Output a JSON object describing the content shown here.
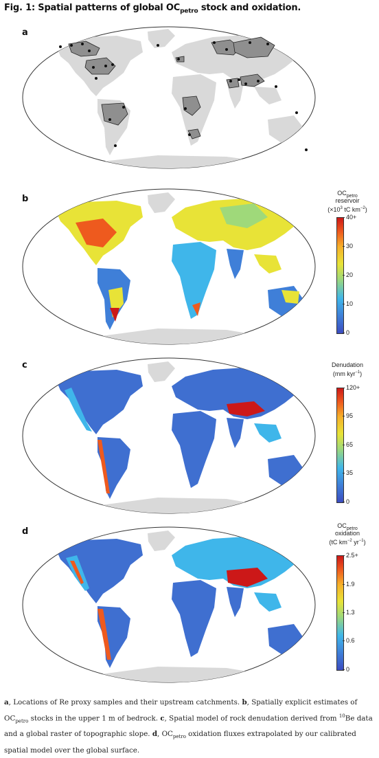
{
  "figure": {
    "title_prefix": "Fig. 1: Spatial patterns of global OC",
    "title_sub": "petro",
    "title_suffix": " stock and oxidation."
  },
  "panels": [
    {
      "letter": "a"
    },
    {
      "letter": "b",
      "colorbar": {
        "title_main": "OC",
        "title_sub": "petro",
        "line2": "reservoir",
        "line3_pre": "(×10",
        "line3_sup": "3",
        "line3_post": " tC km",
        "line3_sup2": "−2",
        "line3_end": ")",
        "ticks": [
          "40+",
          "30",
          "20",
          "10",
          "0"
        ]
      }
    },
    {
      "letter": "c",
      "colorbar": {
        "title_main": "Denudation",
        "line2_pre": "(mm kyr",
        "line2_sup": "−1",
        "line2_end": ")",
        "ticks": [
          "120+",
          "95",
          "65",
          "35",
          "0"
        ]
      }
    },
    {
      "letter": "d",
      "colorbar": {
        "title_main": "OC",
        "title_sub": "petro",
        "line2": "oxidation",
        "line3_pre": "(tC km",
        "line3_sup": "−2",
        "line3_mid": " yr",
        "line3_sup2": "−1",
        "line3_end": ")",
        "ticks": [
          "2.5+",
          "1.9",
          "1.3",
          "0.6",
          "0"
        ]
      }
    }
  ],
  "caption": {
    "a_letter": "a",
    "a_text": ", Locations of Re proxy samples and their upstream catchments. ",
    "b_letter": "b",
    "b_text1": ", Spatially explicit estimates of OC",
    "b_sub": "petro",
    "b_text2": " stocks in the upper 1 m of bedrock. ",
    "c_letter": "c",
    "c_text1": ", Spatial model of rock denudation derived from ",
    "c_sup": "10",
    "c_text2": "Be data and a global raster of topographic slope. ",
    "d_letter": "d",
    "d_text1": ", OC",
    "d_sub": "petro",
    "d_text2": " oxidation fluxes extrapolated by our calibrated spatial model over the global surface."
  },
  "colors": {
    "land_gray": "#d9d9d9",
    "catchment_gray": "#8f8f8f",
    "low_blue": "#3b4cc0",
    "mid_cyan": "#3fb6ea",
    "mid_yellow": "#e8e337",
    "high_red": "#cc1818",
    "ocean": "#ffffff"
  }
}
